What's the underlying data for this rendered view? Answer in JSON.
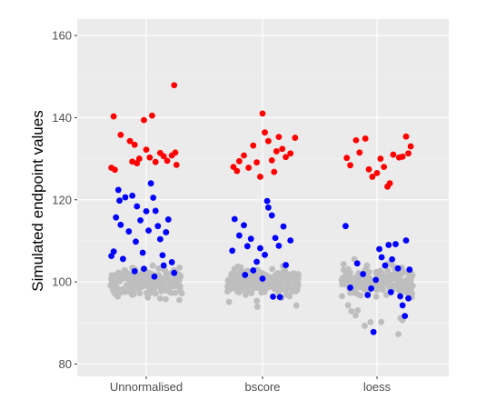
{
  "chart_data": {
    "type": "scatter",
    "title": "",
    "xlabel": "",
    "ylabel": "Simulated endpoint values",
    "categories": [
      "Unnormalised",
      "bscore",
      "loess"
    ],
    "ylim": [
      77,
      164
    ],
    "yticks": [
      80,
      100,
      120,
      140,
      160
    ],
    "grid": true,
    "legend": "none",
    "colors": {
      "panel_background": "#ebebeb",
      "grid_major": "#ffffff",
      "grid_minor": "#f5f5f5",
      "series_1": "#ff0000",
      "series_2": "#0000ff",
      "series_3": "#bebebe"
    },
    "series": [
      {
        "color": "#ff0000",
        "points": [
          {
            "category": "Unnormalised",
            "offset": -0.28,
            "value": 140.3
          },
          {
            "category": "Unnormalised",
            "offset": -0.22,
            "value": 135.8
          },
          {
            "category": "Unnormalised",
            "offset": -0.3,
            "value": 127.8
          },
          {
            "category": "Unnormalised",
            "offset": -0.27,
            "value": 127.3
          },
          {
            "category": "Unnormalised",
            "offset": -0.14,
            "value": 134.3
          },
          {
            "category": "Unnormalised",
            "offset": -0.1,
            "value": 133.4
          },
          {
            "category": "Unnormalised",
            "offset": -0.12,
            "value": 129.3
          },
          {
            "category": "Unnormalised",
            "offset": -0.06,
            "value": 130.0
          },
          {
            "category": "Unnormalised",
            "offset": -0.02,
            "value": 139.4
          },
          {
            "category": "Unnormalised",
            "offset": 0.05,
            "value": 140.5
          },
          {
            "category": "Unnormalised",
            "offset": 0.0,
            "value": 132.2
          },
          {
            "category": "Unnormalised",
            "offset": 0.03,
            "value": 130.3
          },
          {
            "category": "Unnormalised",
            "offset": 0.08,
            "value": 129.2
          },
          {
            "category": "Unnormalised",
            "offset": 0.12,
            "value": 131.4
          },
          {
            "category": "Unnormalised",
            "offset": 0.15,
            "value": 130.6
          },
          {
            "category": "Unnormalised",
            "offset": 0.18,
            "value": 129.5
          },
          {
            "category": "Unnormalised",
            "offset": 0.22,
            "value": 130.8
          },
          {
            "category": "Unnormalised",
            "offset": 0.24,
            "value": 147.9
          },
          {
            "category": "Unnormalised",
            "offset": 0.25,
            "value": 131.5
          },
          {
            "category": "Unnormalised",
            "offset": 0.26,
            "value": 128.5
          },
          {
            "category": "Unnormalised",
            "offset": -0.08,
            "value": 128.9
          },
          {
            "category": "bscore",
            "offset": -0.22,
            "value": 127.0
          },
          {
            "category": "bscore",
            "offset": -0.2,
            "value": 129.4
          },
          {
            "category": "bscore",
            "offset": -0.16,
            "value": 130.8
          },
          {
            "category": "bscore",
            "offset": -0.12,
            "value": 127.8
          },
          {
            "category": "bscore",
            "offset": -0.08,
            "value": 133.2
          },
          {
            "category": "bscore",
            "offset": -0.05,
            "value": 129.1
          },
          {
            "category": "bscore",
            "offset": -0.02,
            "value": 125.6
          },
          {
            "category": "bscore",
            "offset": 0.0,
            "value": 141.0
          },
          {
            "category": "bscore",
            "offset": 0.02,
            "value": 136.4
          },
          {
            "category": "bscore",
            "offset": 0.05,
            "value": 134.3
          },
          {
            "category": "bscore",
            "offset": 0.08,
            "value": 129.6
          },
          {
            "category": "bscore",
            "offset": 0.1,
            "value": 126.8
          },
          {
            "category": "bscore",
            "offset": 0.14,
            "value": 135.3
          },
          {
            "category": "bscore",
            "offset": 0.17,
            "value": 132.4
          },
          {
            "category": "bscore",
            "offset": 0.2,
            "value": 130.4
          },
          {
            "category": "bscore",
            "offset": 0.24,
            "value": 131.3
          },
          {
            "category": "bscore",
            "offset": 0.28,
            "value": 135.1
          },
          {
            "category": "bscore",
            "offset": -0.25,
            "value": 128.0
          },
          {
            "category": "bscore",
            "offset": 0.12,
            "value": 131.8
          },
          {
            "category": "loess",
            "offset": -0.26,
            "value": 130.2
          },
          {
            "category": "loess",
            "offset": -0.23,
            "value": 128.4
          },
          {
            "category": "loess",
            "offset": -0.18,
            "value": 134.5
          },
          {
            "category": "loess",
            "offset": -0.15,
            "value": 131.5
          },
          {
            "category": "loess",
            "offset": -0.1,
            "value": 134.9
          },
          {
            "category": "loess",
            "offset": -0.07,
            "value": 127.4
          },
          {
            "category": "loess",
            "offset": -0.04,
            "value": 125.6
          },
          {
            "category": "loess",
            "offset": 0.0,
            "value": 126.5
          },
          {
            "category": "loess",
            "offset": 0.03,
            "value": 130.0
          },
          {
            "category": "loess",
            "offset": 0.06,
            "value": 128.0
          },
          {
            "category": "loess",
            "offset": 0.09,
            "value": 123.2
          },
          {
            "category": "loess",
            "offset": 0.11,
            "value": 124.0
          },
          {
            "category": "loess",
            "offset": 0.14,
            "value": 131.0
          },
          {
            "category": "loess",
            "offset": 0.19,
            "value": 130.3
          },
          {
            "category": "loess",
            "offset": 0.22,
            "value": 130.5
          },
          {
            "category": "loess",
            "offset": 0.25,
            "value": 135.4
          },
          {
            "category": "loess",
            "offset": 0.27,
            "value": 131.3
          },
          {
            "category": "loess",
            "offset": 0.29,
            "value": 133.0
          }
        ]
      },
      {
        "color": "#0000ff",
        "points": [
          {
            "category": "Unnormalised",
            "offset": -0.24,
            "value": 122.4
          },
          {
            "category": "Unnormalised",
            "offset": -0.23,
            "value": 119.8
          },
          {
            "category": "Unnormalised",
            "offset": -0.26,
            "value": 115.7
          },
          {
            "category": "Unnormalised",
            "offset": -0.22,
            "value": 113.9
          },
          {
            "category": "Unnormalised",
            "offset": -0.28,
            "value": 107.4
          },
          {
            "category": "Unnormalised",
            "offset": -0.3,
            "value": 106.3
          },
          {
            "category": "Unnormalised",
            "offset": -0.18,
            "value": 120.6
          },
          {
            "category": "Unnormalised",
            "offset": -0.12,
            "value": 121.0
          },
          {
            "category": "Unnormalised",
            "offset": -0.15,
            "value": 112.3
          },
          {
            "category": "Unnormalised",
            "offset": -0.08,
            "value": 118.4
          },
          {
            "category": "Unnormalised",
            "offset": -0.05,
            "value": 115.0
          },
          {
            "category": "Unnormalised",
            "offset": -0.09,
            "value": 109.8
          },
          {
            "category": "Unnormalised",
            "offset": -0.03,
            "value": 107.1
          },
          {
            "category": "Unnormalised",
            "offset": 0.0,
            "value": 117.2
          },
          {
            "category": "Unnormalised",
            "offset": 0.02,
            "value": 112.5
          },
          {
            "category": "Unnormalised",
            "offset": 0.04,
            "value": 124.0
          },
          {
            "category": "Unnormalised",
            "offset": 0.06,
            "value": 120.5
          },
          {
            "category": "Unnormalised",
            "offset": 0.08,
            "value": 117.3
          },
          {
            "category": "Unnormalised",
            "offset": 0.1,
            "value": 113.6
          },
          {
            "category": "Unnormalised",
            "offset": 0.12,
            "value": 110.4
          },
          {
            "category": "Unnormalised",
            "offset": 0.14,
            "value": 106.5
          },
          {
            "category": "Unnormalised",
            "offset": 0.17,
            "value": 112.1
          },
          {
            "category": "Unnormalised",
            "offset": 0.19,
            "value": 115.2
          },
          {
            "category": "Unnormalised",
            "offset": 0.22,
            "value": 104.8
          },
          {
            "category": "Unnormalised",
            "offset": -0.2,
            "value": 105.6
          },
          {
            "category": "Unnormalised",
            "offset": 0.15,
            "value": 104.0
          },
          {
            "category": "Unnormalised",
            "offset": -0.02,
            "value": 103.2
          },
          {
            "category": "Unnormalised",
            "offset": 0.24,
            "value": 102.2
          },
          {
            "category": "Unnormalised",
            "offset": 0.07,
            "value": 101.3
          },
          {
            "category": "Unnormalised",
            "offset": -0.1,
            "value": 102.6
          },
          {
            "category": "bscore",
            "offset": -0.24,
            "value": 115.3
          },
          {
            "category": "bscore",
            "offset": -0.26,
            "value": 107.6
          },
          {
            "category": "bscore",
            "offset": -0.2,
            "value": 111.3
          },
          {
            "category": "bscore",
            "offset": -0.16,
            "value": 113.8
          },
          {
            "category": "bscore",
            "offset": -0.13,
            "value": 108.7
          },
          {
            "category": "bscore",
            "offset": -0.1,
            "value": 110.5
          },
          {
            "category": "bscore",
            "offset": -0.05,
            "value": 104.9
          },
          {
            "category": "bscore",
            "offset": -0.02,
            "value": 108.2
          },
          {
            "category": "bscore",
            "offset": 0.02,
            "value": 106.6
          },
          {
            "category": "bscore",
            "offset": 0.04,
            "value": 119.7
          },
          {
            "category": "bscore",
            "offset": 0.05,
            "value": 118.1
          },
          {
            "category": "bscore",
            "offset": 0.08,
            "value": 116.2
          },
          {
            "category": "bscore",
            "offset": 0.11,
            "value": 110.7
          },
          {
            "category": "bscore",
            "offset": 0.14,
            "value": 108.8
          },
          {
            "category": "bscore",
            "offset": 0.18,
            "value": 113.5
          },
          {
            "category": "bscore",
            "offset": 0.2,
            "value": 104.1
          },
          {
            "category": "bscore",
            "offset": 0.24,
            "value": 110.1
          },
          {
            "category": "bscore",
            "offset": -0.08,
            "value": 102.8
          },
          {
            "category": "bscore",
            "offset": 0.15,
            "value": 96.3
          },
          {
            "category": "bscore",
            "offset": 0.09,
            "value": 96.4
          },
          {
            "category": "bscore",
            "offset": -0.15,
            "value": 101.7
          },
          {
            "category": "bscore",
            "offset": 0.0,
            "value": 100.8
          },
          {
            "category": "loess",
            "offset": -0.27,
            "value": 113.6
          },
          {
            "category": "loess",
            "offset": -0.17,
            "value": 104.5
          },
          {
            "category": "loess",
            "offset": -0.12,
            "value": 101.9
          },
          {
            "category": "loess",
            "offset": -0.08,
            "value": 96.8
          },
          {
            "category": "loess",
            "offset": -0.05,
            "value": 98.4
          },
          {
            "category": "loess",
            "offset": -0.01,
            "value": 100.5
          },
          {
            "category": "loess",
            "offset": 0.02,
            "value": 108.0
          },
          {
            "category": "loess",
            "offset": 0.04,
            "value": 106.0
          },
          {
            "category": "loess",
            "offset": 0.07,
            "value": 104.0
          },
          {
            "category": "loess",
            "offset": 0.1,
            "value": 109.0
          },
          {
            "category": "loess",
            "offset": 0.13,
            "value": 105.5
          },
          {
            "category": "loess",
            "offset": 0.16,
            "value": 109.2
          },
          {
            "category": "loess",
            "offset": 0.18,
            "value": 103.3
          },
          {
            "category": "loess",
            "offset": 0.2,
            "value": 96.5
          },
          {
            "category": "loess",
            "offset": 0.22,
            "value": 94.3
          },
          {
            "category": "loess",
            "offset": 0.24,
            "value": 91.7
          },
          {
            "category": "loess",
            "offset": 0.25,
            "value": 110.1
          },
          {
            "category": "loess",
            "offset": 0.28,
            "value": 103.0
          },
          {
            "category": "loess",
            "offset": -0.23,
            "value": 98.6
          },
          {
            "category": "loess",
            "offset": -0.03,
            "value": 87.8
          },
          {
            "category": "loess",
            "offset": 0.12,
            "value": 97.5
          },
          {
            "category": "loess",
            "offset": 0.27,
            "value": 96.0
          }
        ]
      },
      {
        "color": "#bebebe",
        "cluster": true,
        "count_per_category": 190,
        "ranges": {
          "Unnormalised": [
            95.5,
            104.0
          ],
          "bscore": [
            90.2,
            104.3
          ],
          "loess": [
            87.0,
            105.6
          ]
        }
      }
    ]
  }
}
